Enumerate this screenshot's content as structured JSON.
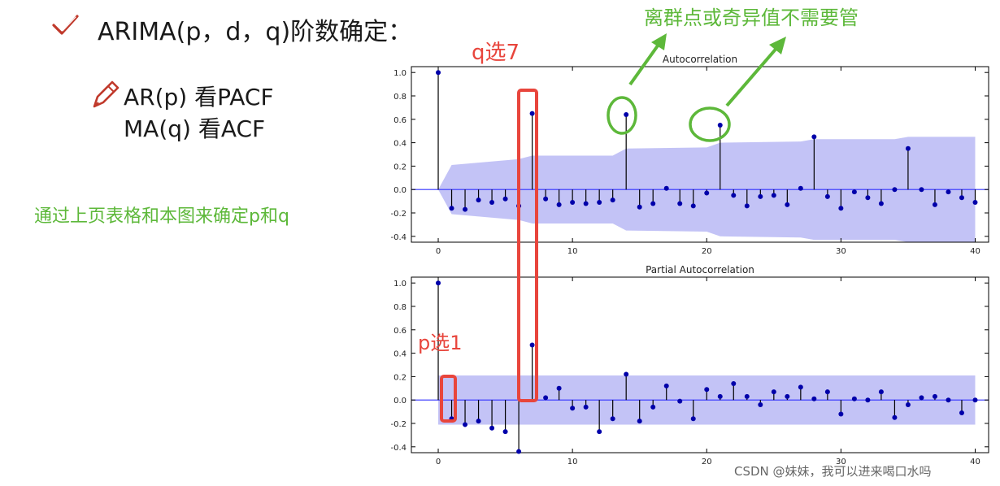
{
  "heading": "ARIMA(p，d，q)阶数确定：",
  "bullets": {
    "ar": "AR(p)  看PACF",
    "ma": "MA(q) 看ACF"
  },
  "method_note": "通过上页表格和本图来确定p和q",
  "annotations": {
    "q_choice": "q选7",
    "p_choice": "p选1",
    "outliers": "离群点或奇异值不需要管"
  },
  "watermark": "CSDN @妹妹，我可以进来喝口水吗",
  "colors": {
    "stem": "#000000",
    "marker": "#0000aa",
    "confidence_band": "#b8b8f4",
    "zero_line": "#3333ff",
    "highlight_red": "#e8453c",
    "highlight_green": "#5db83a"
  },
  "icons": {
    "check": "check-icon",
    "pencil": "pencil-icon"
  },
  "chart_data": [
    {
      "type": "stem",
      "title": "Autocorrelation",
      "xlim": [
        -2,
        41
      ],
      "ylim": [
        -0.45,
        1.05
      ],
      "xticks": [
        0,
        10,
        20,
        30,
        40
      ],
      "yticks": [
        1.0,
        0.8,
        0.6,
        0.4,
        0.2,
        0.0,
        -0.2,
        -0.4
      ],
      "lags": [
        0,
        1,
        2,
        3,
        4,
        5,
        6,
        7,
        8,
        9,
        10,
        11,
        12,
        13,
        14,
        15,
        16,
        17,
        18,
        19,
        20,
        21,
        22,
        23,
        24,
        25,
        26,
        27,
        28,
        29,
        30,
        31,
        32,
        33,
        34,
        35,
        36,
        37,
        38,
        39,
        40
      ],
      "values": [
        1.0,
        -0.16,
        -0.17,
        -0.09,
        -0.11,
        -0.08,
        -0.14,
        0.65,
        -0.08,
        -0.13,
        -0.11,
        -0.12,
        -0.11,
        -0.09,
        0.64,
        -0.15,
        -0.12,
        0.01,
        -0.12,
        -0.14,
        -0.03,
        0.55,
        -0.05,
        -0.14,
        -0.06,
        -0.05,
        -0.13,
        0.01,
        0.45,
        -0.06,
        -0.16,
        -0.02,
        -0.07,
        -0.12,
        0.0,
        0.35,
        0.0,
        -0.13,
        -0.02,
        -0.07,
        -0.11
      ],
      "confidence_band": {
        "lags": [
          0,
          1,
          6,
          7,
          13,
          14,
          20,
          21,
          27,
          28,
          34,
          35,
          40
        ],
        "upper": [
          0.0,
          0.21,
          0.26,
          0.29,
          0.29,
          0.35,
          0.36,
          0.4,
          0.41,
          0.43,
          0.43,
          0.45,
          0.45
        ],
        "lower": [
          0.0,
          -0.21,
          -0.26,
          -0.29,
          -0.29,
          -0.35,
          -0.36,
          -0.4,
          -0.41,
          -0.43,
          -0.43,
          -0.45,
          -0.45
        ]
      }
    },
    {
      "type": "stem",
      "title": "Partial Autocorrelation",
      "xlim": [
        -2,
        41
      ],
      "ylim": [
        -0.45,
        1.05
      ],
      "xticks": [
        0,
        10,
        20,
        30,
        40
      ],
      "yticks": [
        1.0,
        0.8,
        0.6,
        0.4,
        0.2,
        0.0,
        -0.2,
        -0.4
      ],
      "lags": [
        0,
        1,
        2,
        3,
        4,
        5,
        6,
        7,
        8,
        9,
        10,
        11,
        12,
        13,
        14,
        15,
        16,
        17,
        18,
        19,
        20,
        21,
        22,
        23,
        24,
        25,
        26,
        27,
        28,
        29,
        30,
        31,
        32,
        33,
        34,
        35,
        36,
        37,
        38,
        39,
        40
      ],
      "values": [
        1.0,
        -0.16,
        -0.21,
        -0.18,
        -0.24,
        -0.27,
        -0.44,
        0.47,
        0.02,
        0.1,
        -0.07,
        -0.06,
        -0.27,
        -0.16,
        0.22,
        -0.18,
        -0.06,
        0.12,
        -0.01,
        -0.16,
        0.09,
        0.03,
        0.14,
        0.03,
        -0.04,
        0.07,
        0.03,
        0.11,
        0.01,
        0.07,
        -0.12,
        0.01,
        0.0,
        0.07,
        -0.15,
        -0.04,
        0.02,
        0.03,
        0.0,
        -0.11,
        0.0
      ],
      "confidence_band": {
        "upper": 0.21,
        "lower": -0.21
      }
    }
  ]
}
